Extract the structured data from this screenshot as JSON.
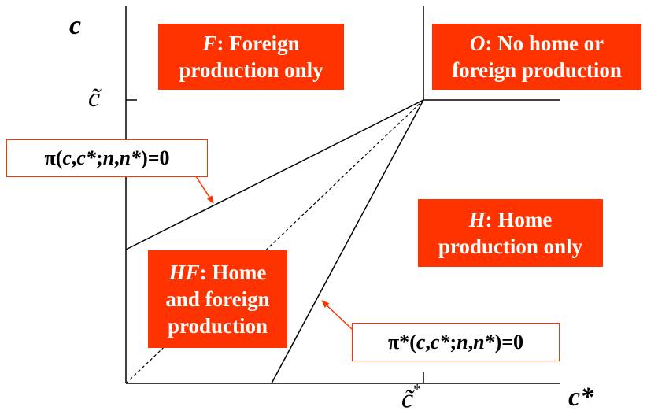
{
  "axes": {
    "y_label": "c",
    "x_label": "c*",
    "y_tick_label": "c̃",
    "x_tick_label": "c̃",
    "x_tick_sup": "*"
  },
  "regions": {
    "F": {
      "letter": "F",
      "line1_rest": ": Foreign",
      "line2": "production only"
    },
    "O": {
      "letter": "O",
      "line1_rest": ": No home or",
      "line2": "foreign production"
    },
    "H": {
      "letter": "H",
      "line1_rest": ": Home",
      "line2": "production only"
    },
    "HF": {
      "letter": "HF",
      "line1_rest": ": Home",
      "line2": "and foreign",
      "line3": "production"
    }
  },
  "equations": {
    "home": {
      "pi": "π",
      "open": "(",
      "c": "c",
      "sep1": ",",
      "cstar": "c*",
      "sep2": ";",
      "n": "n",
      "sep3": ",",
      "nstar": "n*",
      "close": ")=0"
    },
    "foreign": {
      "pi": "π*",
      "open": "(",
      "c": "c",
      "sep1": ",",
      "cstar": "c*",
      "sep2": ";",
      "n": "n",
      "sep3": ",",
      "nstar": "n*",
      "close": ")=0"
    }
  },
  "colors": {
    "accent": "#ff3300",
    "line": "#000000"
  }
}
